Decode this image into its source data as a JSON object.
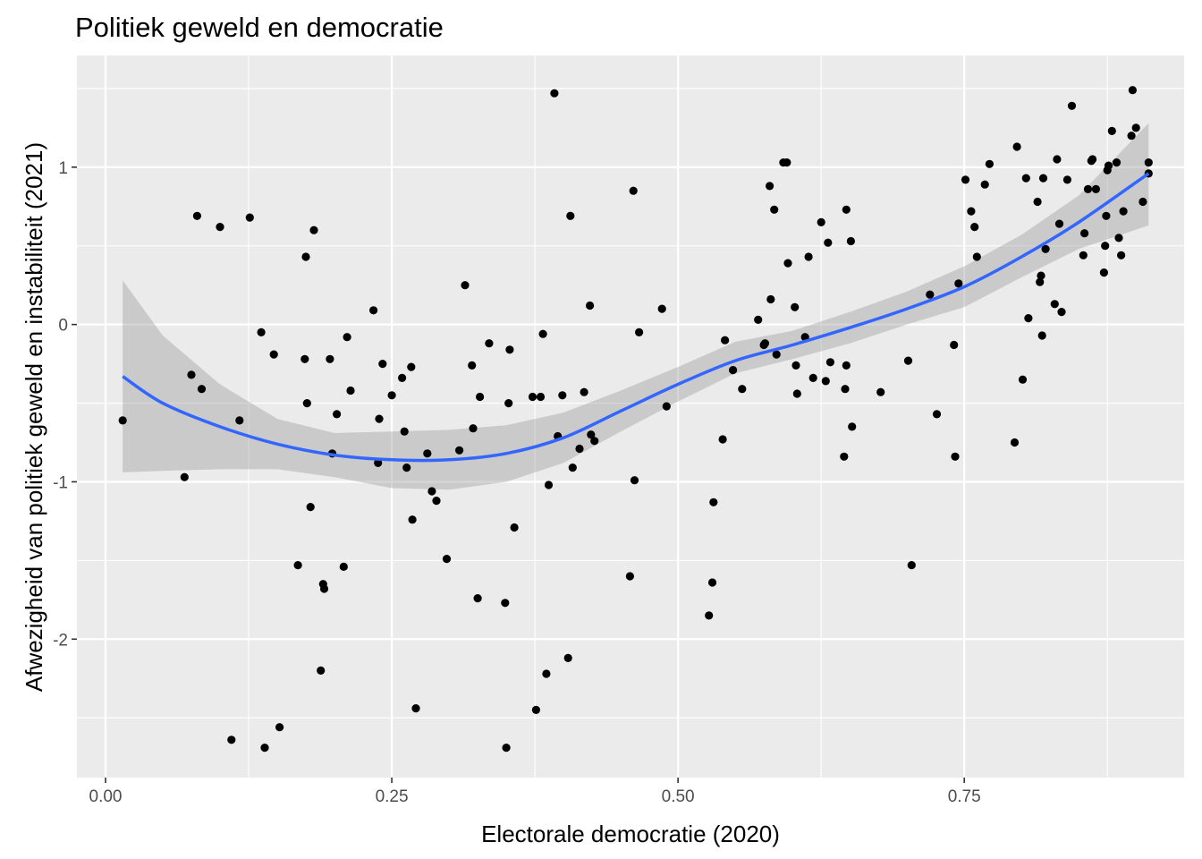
{
  "chart_data": {
    "type": "scatter",
    "title": "Politiek geweld en democratie",
    "xlabel": "Electorale democratie (2020)",
    "ylabel": "Afwezigheid van politiek geweld en instabiliteit (2021)",
    "xlim": [
      -0.025,
      0.942
    ],
    "ylim": [
      -2.88,
      1.71
    ],
    "x_ticks": [
      0.0,
      0.25,
      0.5,
      0.75
    ],
    "x_tick_labels": [
      "0.00",
      "0.25",
      "0.50",
      "0.75"
    ],
    "y_ticks": [
      -2,
      -1,
      0,
      1
    ],
    "y_tick_labels": [
      "-2",
      "-1",
      "0",
      "1"
    ],
    "grid": true,
    "colors": {
      "panel": "#ebebeb",
      "grid": "#ffffff",
      "points": "#000000",
      "smooth_line": "#3366ff",
      "confidence_band": "#999999"
    },
    "points": [
      [
        0.015,
        -0.61
      ],
      [
        0.069,
        -0.97
      ],
      [
        0.075,
        -0.32
      ],
      [
        0.08,
        0.69
      ],
      [
        0.084,
        -0.41
      ],
      [
        0.1,
        0.62
      ],
      [
        0.11,
        -2.64
      ],
      [
        0.117,
        -0.61
      ],
      [
        0.126,
        0.68
      ],
      [
        0.136,
        -0.05
      ],
      [
        0.139,
        -2.69
      ],
      [
        0.147,
        -0.19
      ],
      [
        0.152,
        -2.56
      ],
      [
        0.168,
        -1.53
      ],
      [
        0.174,
        -0.22
      ],
      [
        0.175,
        0.43
      ],
      [
        0.176,
        -0.5
      ],
      [
        0.179,
        -1.16
      ],
      [
        0.182,
        0.6
      ],
      [
        0.188,
        -2.2
      ],
      [
        0.19,
        -1.65
      ],
      [
        0.191,
        -1.68
      ],
      [
        0.196,
        -0.22
      ],
      [
        0.198,
        -0.82
      ],
      [
        0.202,
        -0.57
      ],
      [
        0.208,
        -1.54
      ],
      [
        0.211,
        -0.08
      ],
      [
        0.214,
        -0.42
      ],
      [
        0.234,
        0.09
      ],
      [
        0.238,
        -0.88
      ],
      [
        0.239,
        -0.6
      ],
      [
        0.242,
        -0.25
      ],
      [
        0.25,
        -0.45
      ],
      [
        0.259,
        -0.34
      ],
      [
        0.261,
        -0.68
      ],
      [
        0.263,
        -0.91
      ],
      [
        0.267,
        -0.27
      ],
      [
        0.268,
        -1.24
      ],
      [
        0.271,
        -2.44
      ],
      [
        0.281,
        -0.82
      ],
      [
        0.285,
        -1.06
      ],
      [
        0.289,
        -1.12
      ],
      [
        0.298,
        -1.49
      ],
      [
        0.309,
        -0.8
      ],
      [
        0.314,
        0.25
      ],
      [
        0.32,
        -0.26
      ],
      [
        0.321,
        -0.66
      ],
      [
        0.325,
        -1.74
      ],
      [
        0.327,
        -0.46
      ],
      [
        0.335,
        -0.12
      ],
      [
        0.349,
        -1.77
      ],
      [
        0.35,
        -2.69
      ],
      [
        0.352,
        -0.5
      ],
      [
        0.353,
        -0.16
      ],
      [
        0.357,
        -1.29
      ],
      [
        0.373,
        -0.46
      ],
      [
        0.376,
        -2.45
      ],
      [
        0.38,
        -0.46
      ],
      [
        0.382,
        -0.06
      ],
      [
        0.385,
        -2.22
      ],
      [
        0.387,
        -1.02
      ],
      [
        0.392,
        1.47
      ],
      [
        0.395,
        -0.71
      ],
      [
        0.399,
        -0.45
      ],
      [
        0.404,
        -2.12
      ],
      [
        0.406,
        0.69
      ],
      [
        0.408,
        -0.91
      ],
      [
        0.414,
        -0.79
      ],
      [
        0.418,
        -0.43
      ],
      [
        0.423,
        0.12
      ],
      [
        0.424,
        -0.7
      ],
      [
        0.427,
        -0.74
      ],
      [
        0.458,
        -1.6
      ],
      [
        0.461,
        0.85
      ],
      [
        0.462,
        -0.99
      ],
      [
        0.466,
        -0.05
      ],
      [
        0.486,
        0.1
      ],
      [
        0.49,
        -0.52
      ],
      [
        0.527,
        -1.85
      ],
      [
        0.53,
        -1.64
      ],
      [
        0.531,
        -1.13
      ],
      [
        0.539,
        -0.73
      ],
      [
        0.541,
        -0.1
      ],
      [
        0.548,
        -0.29
      ],
      [
        0.556,
        -0.41
      ],
      [
        0.57,
        0.03
      ],
      [
        0.575,
        -0.13
      ],
      [
        0.576,
        -0.12
      ],
      [
        0.58,
        0.88
      ],
      [
        0.581,
        0.16
      ],
      [
        0.584,
        0.73
      ],
      [
        0.586,
        -0.19
      ],
      [
        0.592,
        1.03
      ],
      [
        0.595,
        1.03
      ],
      [
        0.596,
        0.39
      ],
      [
        0.602,
        0.11
      ],
      [
        0.603,
        -0.26
      ],
      [
        0.604,
        -0.44
      ],
      [
        0.611,
        -0.08
      ],
      [
        0.614,
        0.43
      ],
      [
        0.618,
        -0.34
      ],
      [
        0.625,
        0.65
      ],
      [
        0.629,
        -0.36
      ],
      [
        0.631,
        0.52
      ],
      [
        0.633,
        -0.24
      ],
      [
        0.645,
        -0.84
      ],
      [
        0.646,
        -0.41
      ],
      [
        0.647,
        -0.26
      ],
      [
        0.647,
        0.73
      ],
      [
        0.651,
        0.53
      ],
      [
        0.652,
        -0.65
      ],
      [
        0.677,
        -0.43
      ],
      [
        0.701,
        -0.23
      ],
      [
        0.704,
        -1.53
      ],
      [
        0.72,
        0.19
      ],
      [
        0.726,
        -0.57
      ],
      [
        0.741,
        -0.13
      ],
      [
        0.742,
        -0.84
      ],
      [
        0.745,
        0.26
      ],
      [
        0.751,
        0.92
      ],
      [
        0.756,
        0.72
      ],
      [
        0.759,
        0.62
      ],
      [
        0.761,
        0.43
      ],
      [
        0.768,
        0.89
      ],
      [
        0.772,
        1.02
      ],
      [
        0.794,
        -0.75
      ],
      [
        0.796,
        1.13
      ],
      [
        0.801,
        -0.35
      ],
      [
        0.804,
        0.93
      ],
      [
        0.806,
        0.04
      ],
      [
        0.814,
        0.78
      ],
      [
        0.816,
        0.27
      ],
      [
        0.817,
        0.31
      ],
      [
        0.818,
        -0.07
      ],
      [
        0.819,
        0.93
      ],
      [
        0.821,
        0.48
      ],
      [
        0.829,
        0.13
      ],
      [
        0.831,
        1.05
      ],
      [
        0.833,
        0.64
      ],
      [
        0.835,
        0.08
      ],
      [
        0.84,
        0.92
      ],
      [
        0.844,
        1.39
      ],
      [
        0.854,
        0.44
      ],
      [
        0.855,
        0.58
      ],
      [
        0.858,
        0.86
      ],
      [
        0.861,
        1.04
      ],
      [
        0.862,
        1.05
      ],
      [
        0.865,
        0.86
      ],
      [
        0.872,
        0.33
      ],
      [
        0.873,
        0.5
      ],
      [
        0.874,
        0.69
      ],
      [
        0.875,
        0.98
      ],
      [
        0.876,
        1.01
      ],
      [
        0.879,
        1.23
      ],
      [
        0.883,
        1.03
      ],
      [
        0.885,
        0.55
      ],
      [
        0.887,
        0.44
      ],
      [
        0.889,
        0.72
      ],
      [
        0.896,
        1.2
      ],
      [
        0.897,
        1.49
      ],
      [
        0.9,
        1.25
      ],
      [
        0.906,
        0.78
      ],
      [
        0.911,
        1.03
      ],
      [
        0.911,
        0.96
      ]
    ],
    "smooth": {
      "x": [
        0.015,
        0.05,
        0.1,
        0.15,
        0.2,
        0.25,
        0.3,
        0.35,
        0.4,
        0.45,
        0.5,
        0.55,
        0.6,
        0.65,
        0.7,
        0.75,
        0.8,
        0.85,
        0.911
      ],
      "y": [
        -0.33,
        -0.5,
        -0.65,
        -0.76,
        -0.83,
        -0.86,
        -0.86,
        -0.82,
        -0.72,
        -0.55,
        -0.38,
        -0.23,
        -0.13,
        -0.02,
        0.1,
        0.24,
        0.43,
        0.65,
        0.96
      ],
      "lower": [
        -0.94,
        -0.93,
        -0.92,
        -0.92,
        -0.97,
        -1.04,
        -1.05,
        -1.0,
        -0.88,
        -0.68,
        -0.49,
        -0.31,
        -0.22,
        -0.12,
        0.0,
        0.11,
        0.3,
        0.48,
        0.63
      ],
      "upper": [
        0.28,
        -0.07,
        -0.38,
        -0.6,
        -0.69,
        -0.68,
        -0.67,
        -0.64,
        -0.56,
        -0.42,
        -0.27,
        -0.11,
        -0.04,
        0.08,
        0.21,
        0.37,
        0.57,
        0.82,
        1.28
      ]
    }
  }
}
